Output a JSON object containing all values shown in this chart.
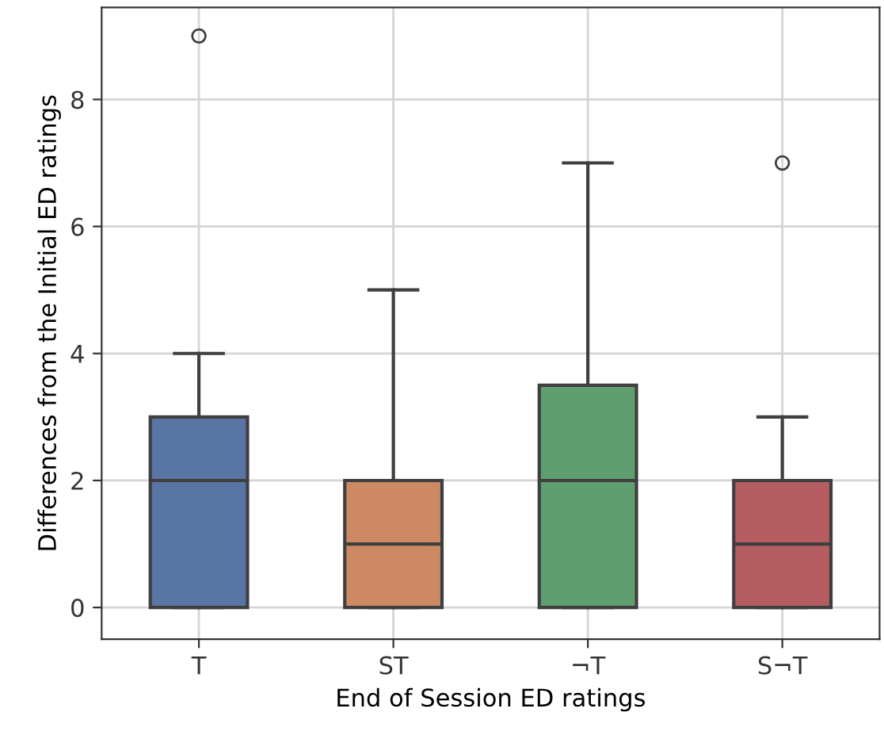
{
  "chart_data": {
    "type": "box",
    "xlabel": "End of Session ED ratings",
    "ylabel": "Differences from the Initial ED ratings",
    "categories": [
      "T",
      "ST",
      "¬T",
      "S¬T"
    ],
    "colors": [
      "#5975a4",
      "#cc8963",
      "#5f9e6e",
      "#b55d60"
    ],
    "boxes": [
      {
        "low": 0,
        "q1": 0,
        "median": 2,
        "q3": 3,
        "high": 4,
        "outliers": [
          9
        ]
      },
      {
        "low": 0,
        "q1": 0,
        "median": 1,
        "q3": 2,
        "high": 5
      },
      {
        "low": 0,
        "q1": 0,
        "median": 2,
        "q3": 3.5,
        "high": 7
      },
      {
        "low": 0,
        "q1": 0,
        "median": 1,
        "q3": 2,
        "high": 3,
        "outliers": [
          7
        ]
      }
    ],
    "ylim": [
      -0.5,
      9.45
    ],
    "yticks": [
      0,
      2,
      4,
      6,
      8
    ],
    "grid": true
  }
}
